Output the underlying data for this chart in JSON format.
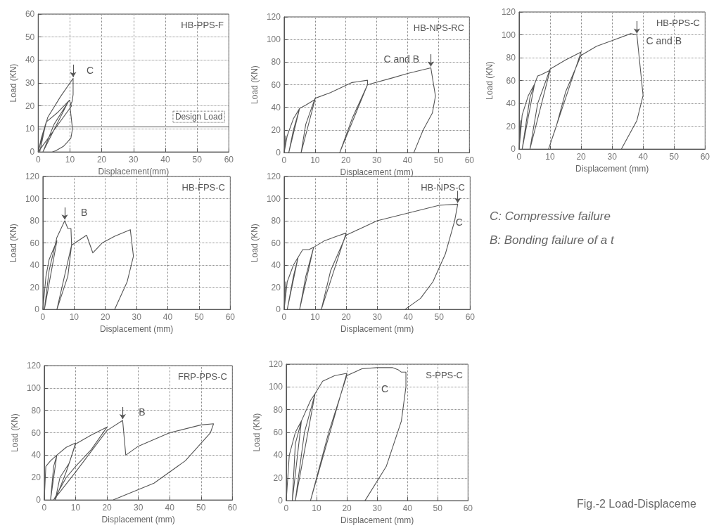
{
  "chart_data": [
    {
      "type": "line",
      "title": "HB-PPS-F",
      "xlabel": "Displacement(mm)",
      "ylabel": "Load (KN)",
      "xlim": [
        0,
        60
      ],
      "ylim": [
        0,
        60
      ],
      "xticks": [
        0,
        10,
        20,
        30,
        40,
        50,
        60
      ],
      "yticks": [
        0,
        10,
        20,
        30,
        40,
        50,
        60
      ],
      "grid": true,
      "marker": "none",
      "line_style": "solid",
      "series": [
        {
          "color": "#555555",
          "x": [
            0,
            1,
            2.3,
            0.5,
            2.5,
            6,
            9.5,
            1.5,
            5,
            9.8,
            10.5,
            0,
            3,
            7,
            11,
            11,
            10.7,
            10,
            10.8,
            10.3,
            9,
            8,
            5.5,
            4.5
          ],
          "values": [
            0,
            6,
            12,
            0,
            13,
            17,
            22,
            0,
            12,
            22.5,
            20,
            0,
            15,
            24,
            32,
            25,
            22,
            20,
            10,
            6,
            4,
            2.5,
            0.5,
            0
          ]
        }
      ],
      "ref_lines": [
        {
          "axis": "y",
          "value": 11,
          "label": "Design Load"
        }
      ],
      "annotations": [
        {
          "text": "C",
          "x": 11,
          "y": 32
        }
      ]
    },
    {
      "type": "line",
      "title": "HB-NPS-RC",
      "xlabel": "Displacement (mm)",
      "ylabel": "Load (KN)",
      "xlim": [
        0,
        60
      ],
      "ylim": [
        0,
        120
      ],
      "xticks": [
        0,
        10,
        20,
        30,
        40,
        50,
        60
      ],
      "yticks": [
        0,
        20,
        40,
        60,
        80,
        100,
        120
      ],
      "grid": true,
      "marker": "none",
      "line_style": "solid",
      "series": [
        {
          "color": "#555555",
          "x": [
            0,
            0.5,
            0,
            1,
            3,
            5,
            1.5,
            3,
            5,
            7,
            10,
            5.5,
            7,
            10,
            15,
            22,
            27,
            27,
            18,
            22,
            27,
            35,
            40,
            47.5,
            49,
            48,
            45,
            42
          ],
          "values": [
            0,
            15,
            0,
            15,
            30,
            39,
            0,
            20,
            39,
            42,
            47,
            0,
            25,
            48,
            53,
            62,
            64,
            60,
            0,
            30,
            60,
            66,
            70,
            75,
            50,
            35,
            20,
            0
          ]
        }
      ],
      "annotations": [
        {
          "text": "C and B",
          "x": 47.5,
          "y": 75
        }
      ]
    },
    {
      "type": "line",
      "title": "HB-PPS-C",
      "xlabel": "Displacement (mm)",
      "ylabel": "Load (KN)",
      "xlim": [
        0,
        60
      ],
      "ylim": [
        0,
        120
      ],
      "xticks": [
        0,
        10,
        20,
        30,
        40,
        50,
        60
      ],
      "yticks": [
        0,
        20,
        40,
        60,
        80,
        100,
        120
      ],
      "grid": true,
      "marker": "none",
      "line_style": "solid",
      "series": [
        {
          "color": "#555555",
          "x": [
            0,
            0.5,
            0,
            1,
            3,
            5,
            1,
            3.5,
            5,
            6,
            7,
            10,
            3.5,
            6,
            10,
            15,
            20,
            9.5,
            12,
            15,
            20,
            25,
            30,
            36,
            38,
            40,
            38,
            35,
            33
          ],
          "values": [
            0,
            25,
            0,
            30,
            47,
            57,
            0,
            45,
            57,
            64,
            65,
            69,
            0,
            40,
            70,
            78,
            85,
            0,
            20,
            50,
            82,
            90,
            95,
            101,
            100,
            47,
            25,
            10,
            0
          ]
        }
      ],
      "annotations": [
        {
          "text": "C and B",
          "x": 38,
          "y": 100
        }
      ]
    },
    {
      "type": "line",
      "title": "HB-FPS-C",
      "xlabel": "Displacement (mm)",
      "ylabel": "Load (KN)",
      "xlim": [
        0,
        60
      ],
      "ylim": [
        0,
        120
      ],
      "xticks": [
        0,
        10,
        20,
        30,
        40,
        50,
        60
      ],
      "yticks": [
        0,
        20,
        40,
        60,
        80,
        100,
        120
      ],
      "grid": true,
      "marker": "none",
      "line_style": "solid",
      "series": [
        {
          "color": "#555555",
          "x": [
            0,
            1,
            2,
            4.5,
            0.5,
            2,
            4.5,
            7,
            8,
            9,
            9.2,
            4.5,
            8,
            9.2,
            14,
            16,
            19,
            23,
            28,
            29,
            27,
            23
          ],
          "values": [
            0,
            30,
            45,
            62,
            0,
            35,
            65,
            80,
            73,
            73,
            58,
            0,
            30,
            58,
            67,
            51,
            60,
            66,
            72,
            48,
            25,
            0
          ]
        }
      ],
      "annotations": [
        {
          "text": "B",
          "x": 7,
          "y": 80
        }
      ]
    },
    {
      "type": "line",
      "title": "HB-NPS-C",
      "xlabel": "Displacement (mm)",
      "ylabel": "Load (KN)",
      "xlim": [
        0,
        60
      ],
      "ylim": [
        0,
        120
      ],
      "xticks": [
        0,
        10,
        20,
        30,
        40,
        50,
        60
      ],
      "yticks": [
        0,
        20,
        40,
        60,
        80,
        100,
        120
      ],
      "grid": true,
      "marker": "none",
      "line_style": "solid",
      "series": [
        {
          "color": "#555555",
          "x": [
            0,
            0.5,
            0,
            1,
            3,
            4.5,
            1,
            3,
            4.5,
            6,
            8,
            9.5,
            5,
            7,
            9.5,
            13,
            17,
            20,
            12,
            15,
            20,
            30,
            40,
            50,
            56,
            55,
            52,
            48,
            44,
            39
          ],
          "values": [
            0,
            25,
            0,
            25,
            40,
            47,
            0,
            30,
            47,
            54,
            54,
            56,
            0,
            30,
            56,
            62,
            66,
            69,
            0,
            35,
            67,
            80,
            87,
            94,
            95,
            80,
            50,
            25,
            10,
            0
          ]
        }
      ],
      "annotations": [
        {
          "text": "C",
          "x": 56,
          "y": 95
        }
      ]
    },
    {
      "type": "line",
      "title": "FRP-PPS-C",
      "xlabel": "Displacement (mm)",
      "ylabel": "Load (KN)",
      "xlim": [
        0,
        60
      ],
      "ylim": [
        0,
        120
      ],
      "xticks": [
        0,
        10,
        20,
        30,
        40,
        50,
        60
      ],
      "yticks": [
        0,
        20,
        40,
        60,
        80,
        100,
        120
      ],
      "grid": true,
      "marker": "none",
      "line_style": "solid",
      "series": [
        {
          "color": "#555555",
          "x": [
            0,
            0.5,
            2,
            4,
            2,
            3,
            4,
            7,
            10,
            8,
            5,
            3.5,
            7,
            10,
            15,
            20,
            15,
            10,
            7,
            4,
            3,
            10,
            20,
            25,
            26,
            30,
            40,
            50,
            54,
            53,
            45,
            35,
            22
          ],
          "values": [
            0,
            30,
            35,
            40,
            0,
            30,
            40,
            47,
            51,
            33,
            20,
            0,
            25,
            50,
            58,
            65,
            45,
            30,
            20,
            5,
            0,
            25,
            62,
            71,
            40,
            48,
            60,
            67,
            68,
            60,
            35,
            15,
            0
          ]
        }
      ],
      "annotations": [
        {
          "text": "B",
          "x": 25,
          "y": 71
        }
      ]
    },
    {
      "type": "line",
      "title": "S-PPS-C",
      "xlabel": "Displacement (mm)",
      "ylabel": "Load (KN)",
      "xlim": [
        0,
        60
      ],
      "ylim": [
        0,
        120
      ],
      "xticks": [
        0,
        10,
        20,
        30,
        40,
        50,
        60
      ],
      "yticks": [
        0,
        20,
        40,
        60,
        80,
        100,
        120
      ],
      "grid": true,
      "marker": "none",
      "line_style": "solid",
      "series": [
        {
          "color": "#555555",
          "x": [
            0,
            1,
            3,
            5,
            2,
            3,
            5,
            8,
            9.5,
            3,
            6,
            9.5,
            12,
            16,
            20,
            8,
            14,
            20,
            25,
            30,
            35,
            37,
            38,
            39.5,
            39.5,
            38,
            33,
            26
          ],
          "values": [
            0,
            40,
            60,
            70,
            0,
            50,
            70,
            88,
            94,
            0,
            60,
            94,
            105,
            110,
            112,
            0,
            60,
            110,
            116,
            117,
            117,
            115,
            113,
            113,
            100,
            70,
            30,
            0
          ]
        }
      ],
      "annotations": [
        {
          "text": "C",
          "x": 39.5,
          "y": 113
        }
      ]
    },
    {
      "type": "other",
      "annotations": [
        "C: Compressive failure",
        "B: Bonding failure of a t",
        "Fig.-2  Load-Displaceme"
      ]
    }
  ]
}
